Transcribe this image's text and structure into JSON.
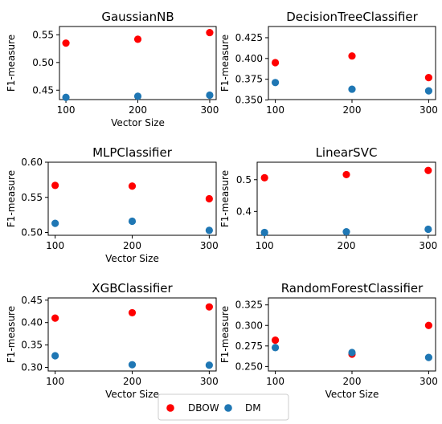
{
  "chart_data": [
    {
      "type": "scatter",
      "title": "GaussianNB",
      "xlabel": "Vector Size",
      "ylabel": "F1-measure",
      "x": [
        100,
        200,
        300
      ],
      "xticks": [
        "100",
        "200",
        "300"
      ],
      "ylim": [
        0.433,
        0.565
      ],
      "yticks": [
        0.45,
        0.5,
        0.55
      ],
      "yticklabels": [
        "0.45",
        "0.50",
        "0.55"
      ],
      "series": [
        {
          "name": "DBOW",
          "color": "#ff0000",
          "values": [
            0.535,
            0.542,
            0.554
          ]
        },
        {
          "name": "DM",
          "color": "#1f77b4",
          "values": [
            0.437,
            0.439,
            0.441
          ]
        }
      ]
    },
    {
      "type": "scatter",
      "title": "DecisionTreeClassifier",
      "xlabel": "",
      "ylabel": "F1-measure",
      "x": [
        100,
        200,
        300
      ],
      "xticks": [
        "100",
        "200",
        "300"
      ],
      "ylim": [
        0.3505,
        0.4385
      ],
      "yticks": [
        0.35,
        0.375,
        0.4,
        0.425
      ],
      "yticklabels": [
        "0.350",
        "0.375",
        "0.400",
        "0.425"
      ],
      "series": [
        {
          "name": "DBOW",
          "color": "#ff0000",
          "values": [
            0.395,
            0.403,
            0.377
          ]
        },
        {
          "name": "DM",
          "color": "#1f77b4",
          "values": [
            0.371,
            0.363,
            0.361
          ]
        }
      ]
    },
    {
      "type": "scatter",
      "title": "MLPClassifier",
      "xlabel": "Vector Size",
      "ylabel": "F1-measure",
      "x": [
        100,
        200,
        300
      ],
      "xticks": [
        "100",
        "200",
        "300"
      ],
      "ylim": [
        0.496,
        0.6
      ],
      "yticks": [
        0.5,
        0.55,
        0.6
      ],
      "yticklabels": [
        "0.50",
        "0.55",
        "0.60"
      ],
      "series": [
        {
          "name": "DBOW",
          "color": "#ff0000",
          "values": [
            0.567,
            0.566,
            0.548
          ]
        },
        {
          "name": "DM",
          "color": "#1f77b4",
          "values": [
            0.513,
            0.516,
            0.503
          ]
        }
      ]
    },
    {
      "type": "scatter",
      "title": "LinearSVC",
      "xlabel": "",
      "ylabel": "F1-measure",
      "x": [
        100,
        200,
        300
      ],
      "xticks": [
        "100",
        "200",
        "300"
      ],
      "ylim": [
        0.325,
        0.555
      ],
      "yticks": [
        0.4,
        0.5
      ],
      "yticklabels": [
        "0.4",
        "0.5"
      ],
      "series": [
        {
          "name": "DBOW",
          "color": "#ff0000",
          "values": [
            0.506,
            0.516,
            0.529
          ]
        },
        {
          "name": "DM",
          "color": "#1f77b4",
          "values": [
            0.334,
            0.336,
            0.344
          ]
        }
      ]
    },
    {
      "type": "scatter",
      "title": "XGBClassifier",
      "xlabel": "Vector Size",
      "ylabel": "F1-measure",
      "x": [
        100,
        200,
        300
      ],
      "xticks": [
        "100",
        "200",
        "300"
      ],
      "ylim": [
        0.292,
        0.455
      ],
      "yticks": [
        0.3,
        0.35,
        0.4,
        0.45
      ],
      "yticklabels": [
        "0.30",
        "0.35",
        "0.40",
        "0.45"
      ],
      "series": [
        {
          "name": "DBOW",
          "color": "#ff0000",
          "values": [
            0.41,
            0.422,
            0.435
          ]
        },
        {
          "name": "DM",
          "color": "#1f77b4",
          "values": [
            0.326,
            0.306,
            0.305
          ]
        }
      ]
    },
    {
      "type": "scatter",
      "title": "RandomForestClassifier",
      "xlabel": "Vector Size",
      "ylabel": "F1-measure",
      "x": [
        100,
        200,
        300
      ],
      "xticks": [
        "100",
        "200",
        "300"
      ],
      "ylim": [
        0.2445,
        0.3335
      ],
      "yticks": [
        0.25,
        0.275,
        0.3,
        0.325
      ],
      "yticklabels": [
        "0.250",
        "0.275",
        "0.300",
        "0.325"
      ],
      "series": [
        {
          "name": "DBOW",
          "color": "#ff0000",
          "values": [
            0.282,
            0.265,
            0.3
          ]
        },
        {
          "name": "DM",
          "color": "#1f77b4",
          "values": [
            0.273,
            0.267,
            0.261
          ]
        }
      ]
    }
  ],
  "legend": {
    "placement": "bottom-center",
    "items": [
      {
        "label": "DBOW",
        "color": "#ff0000"
      },
      {
        "label": "DM",
        "color": "#1f77b4"
      }
    ]
  }
}
